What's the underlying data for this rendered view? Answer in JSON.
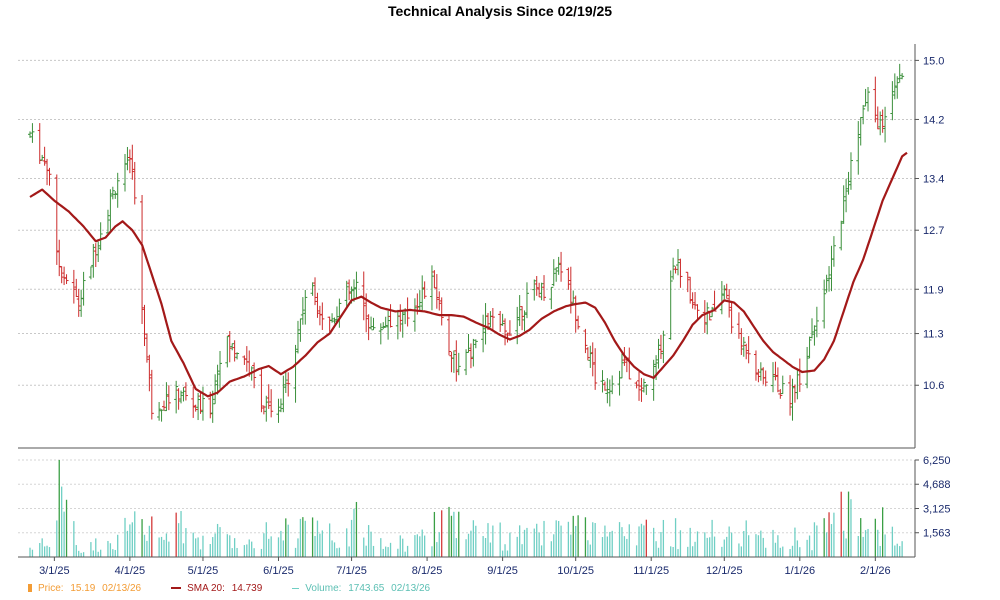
{
  "chart_data": {
    "type": "ohlc-bar",
    "title": "Technical Analysis Since 02/19/25",
    "price_axis": {
      "ticks": [
        "15.0",
        "14.2",
        "13.4",
        "12.7",
        "11.9",
        "11.3",
        "10.6"
      ],
      "values": [
        15.0,
        14.2,
        13.4,
        12.7,
        11.9,
        11.3,
        10.6
      ],
      "ylim": [
        9.75,
        15.1
      ]
    },
    "volume_axis": {
      "ticks": [
        "6,250",
        "4,688",
        "3,125",
        "1,563"
      ],
      "values": [
        6250,
        4688,
        3125,
        1563
      ],
      "ylim": [
        0,
        6250
      ]
    },
    "x_labels": [
      {
        "label": "3/1/25",
        "day": 10
      },
      {
        "label": "4/1/25",
        "day": 41
      },
      {
        "label": "5/1/25",
        "day": 71
      },
      {
        "label": "6/1/25",
        "day": 102
      },
      {
        "label": "7/1/25",
        "day": 132
      },
      {
        "label": "8/1/25",
        "day": 163
      },
      {
        "label": "9/1/25",
        "day": 194
      },
      {
        "label": "10/1/25",
        "day": 224
      },
      {
        "label": "11/1/25",
        "day": 255
      },
      {
        "label": "12/1/25",
        "day": 285
      },
      {
        "label": "1/1/26",
        "day": 316
      },
      {
        "label": "2/1/26",
        "day": 347
      }
    ],
    "price_keypoints": [
      [
        0,
        14.0
      ],
      [
        8,
        13.5
      ],
      [
        11,
        12.3
      ],
      [
        20,
        11.7
      ],
      [
        28,
        12.6
      ],
      [
        36,
        13.4
      ],
      [
        42,
        13.6
      ],
      [
        45,
        12.0
      ],
      [
        50,
        10.3
      ],
      [
        55,
        10.4
      ],
      [
        62,
        10.5
      ],
      [
        68,
        10.3
      ],
      [
        74,
        10.3
      ],
      [
        79,
        11.2
      ],
      [
        88,
        11.0
      ],
      [
        95,
        10.4
      ],
      [
        101,
        10.1
      ],
      [
        108,
        11.0
      ],
      [
        114,
        12.0
      ],
      [
        122,
        11.4
      ],
      [
        129,
        11.8
      ],
      [
        134,
        11.9
      ],
      [
        141,
        11.3
      ],
      [
        147,
        11.5
      ],
      [
        154,
        11.5
      ],
      [
        160,
        11.8
      ],
      [
        166,
        12.0
      ],
      [
        171,
        11.2
      ],
      [
        176,
        10.8
      ],
      [
        182,
        11.1
      ],
      [
        188,
        11.5
      ],
      [
        195,
        11.3
      ],
      [
        201,
        11.6
      ],
      [
        207,
        11.9
      ],
      [
        213,
        11.9
      ],
      [
        217,
        12.3
      ],
      [
        221,
        11.9
      ],
      [
        227,
        11.3
      ],
      [
        232,
        10.7
      ],
      [
        238,
        10.6
      ],
      [
        244,
        10.9
      ],
      [
        250,
        10.5
      ],
      [
        256,
        10.8
      ],
      [
        260,
        11.3
      ],
      [
        264,
        12.3
      ],
      [
        268,
        12.1
      ],
      [
        273,
        11.7
      ],
      [
        279,
        11.5
      ],
      [
        285,
        11.9
      ],
      [
        290,
        11.2
      ],
      [
        295,
        11.1
      ],
      [
        300,
        10.7
      ],
      [
        305,
        10.7
      ],
      [
        311,
        10.4
      ],
      [
        317,
        10.8
      ],
      [
        322,
        11.5
      ],
      [
        327,
        11.9
      ],
      [
        331,
        12.6
      ],
      [
        336,
        13.4
      ],
      [
        340,
        14.1
      ],
      [
        344,
        14.5
      ],
      [
        349,
        14.1
      ],
      [
        353,
        14.4
      ],
      [
        358,
        14.8
      ],
      [
        360,
        14.6
      ]
    ],
    "sma_keypoints": [
      [
        0,
        13.15
      ],
      [
        5,
        13.25
      ],
      [
        10,
        13.1
      ],
      [
        16,
        12.95
      ],
      [
        22,
        12.75
      ],
      [
        27,
        12.55
      ],
      [
        31,
        12.6
      ],
      [
        35,
        12.75
      ],
      [
        38,
        12.82
      ],
      [
        42,
        12.7
      ],
      [
        46,
        12.5
      ],
      [
        50,
        12.1
      ],
      [
        54,
        11.7
      ],
      [
        58,
        11.2
      ],
      [
        63,
        10.9
      ],
      [
        68,
        10.55
      ],
      [
        73,
        10.45
      ],
      [
        77,
        10.5
      ],
      [
        82,
        10.65
      ],
      [
        88,
        10.72
      ],
      [
        94,
        10.82
      ],
      [
        98,
        10.86
      ],
      [
        103,
        10.75
      ],
      [
        108,
        10.85
      ],
      [
        113,
        11.0
      ],
      [
        118,
        11.18
      ],
      [
        123,
        11.3
      ],
      [
        127,
        11.5
      ],
      [
        132,
        11.75
      ],
      [
        136,
        11.8
      ],
      [
        140,
        11.72
      ],
      [
        144,
        11.65
      ],
      [
        150,
        11.6
      ],
      [
        156,
        11.62
      ],
      [
        162,
        11.6
      ],
      [
        168,
        11.55
      ],
      [
        173,
        11.55
      ],
      [
        178,
        11.53
      ],
      [
        183,
        11.45
      ],
      [
        188,
        11.38
      ],
      [
        193,
        11.28
      ],
      [
        197,
        11.22
      ],
      [
        201,
        11.27
      ],
      [
        205,
        11.35
      ],
      [
        210,
        11.5
      ],
      [
        215,
        11.6
      ],
      [
        220,
        11.67
      ],
      [
        224,
        11.7
      ],
      [
        228,
        11.72
      ],
      [
        232,
        11.65
      ],
      [
        236,
        11.45
      ],
      [
        240,
        11.2
      ],
      [
        244,
        11.0
      ],
      [
        248,
        10.85
      ],
      [
        252,
        10.75
      ],
      [
        256,
        10.7
      ],
      [
        260,
        10.85
      ],
      [
        264,
        11.0
      ],
      [
        268,
        11.2
      ],
      [
        272,
        11.42
      ],
      [
        276,
        11.55
      ],
      [
        281,
        11.62
      ],
      [
        285,
        11.75
      ],
      [
        289,
        11.72
      ],
      [
        293,
        11.6
      ],
      [
        297,
        11.4
      ],
      [
        301,
        11.2
      ],
      [
        305,
        11.05
      ],
      [
        309,
        10.95
      ],
      [
        313,
        10.85
      ],
      [
        317,
        10.78
      ],
      [
        322,
        10.8
      ],
      [
        326,
        10.95
      ],
      [
        330,
        11.2
      ],
      [
        334,
        11.6
      ],
      [
        338,
        12.0
      ],
      [
        342,
        12.3
      ],
      [
        346,
        12.7
      ],
      [
        350,
        13.1
      ],
      [
        354,
        13.4
      ],
      [
        358,
        13.7
      ],
      [
        360,
        13.75
      ]
    ],
    "volume_levels": [
      [
        0,
        1000
      ],
      [
        10,
        1300
      ],
      [
        12,
        6250
      ],
      [
        20,
        900
      ],
      [
        30,
        1400
      ],
      [
        40,
        2600
      ],
      [
        45,
        3200
      ],
      [
        55,
        2000
      ],
      [
        60,
        3100
      ],
      [
        70,
        2000
      ],
      [
        80,
        2000
      ],
      [
        90,
        1500
      ],
      [
        95,
        2600
      ],
      [
        100,
        2400
      ],
      [
        110,
        2800
      ],
      [
        115,
        3500
      ],
      [
        120,
        1800
      ],
      [
        130,
        2400
      ],
      [
        135,
        3500
      ],
      [
        140,
        1900
      ],
      [
        150,
        1500
      ],
      [
        160,
        1600
      ],
      [
        165,
        3000
      ],
      [
        170,
        3900
      ],
      [
        175,
        4800
      ],
      [
        180,
        2600
      ],
      [
        190,
        2100
      ],
      [
        200,
        1900
      ],
      [
        210,
        2200
      ],
      [
        220,
        2400
      ],
      [
        225,
        2800
      ],
      [
        230,
        2100
      ],
      [
        240,
        2000
      ],
      [
        250,
        2500
      ],
      [
        255,
        2400
      ],
      [
        260,
        3200
      ],
      [
        265,
        2400
      ],
      [
        270,
        1800
      ],
      [
        280,
        2200
      ],
      [
        285,
        2600
      ],
      [
        290,
        2600
      ],
      [
        300,
        1900
      ],
      [
        305,
        1600
      ],
      [
        310,
        2100
      ],
      [
        320,
        1800
      ],
      [
        330,
        3200
      ],
      [
        335,
        5000
      ],
      [
        340,
        3300
      ],
      [
        345,
        3500
      ],
      [
        350,
        3200
      ],
      [
        355,
        2500
      ],
      [
        360,
        2400
      ]
    ],
    "up_color": "#3a8f3a",
    "down_color": "#cc2a2a",
    "sma_color": "#a31919",
    "volume_color": "#6fcfc4",
    "volume_spike_color": "#3a9f44",
    "volume_red_color": "#d43a3a",
    "grid": true,
    "legend_position": "bottom-left"
  },
  "legend": {
    "price_label": "Price:",
    "price_value": "15.19",
    "price_date": "02/13/26",
    "sma_label": "SMA 20:",
    "sma_value": "14.739",
    "volume_label": "Volume:",
    "volume_value": "1743.65",
    "volume_date": "02/13/26"
  }
}
